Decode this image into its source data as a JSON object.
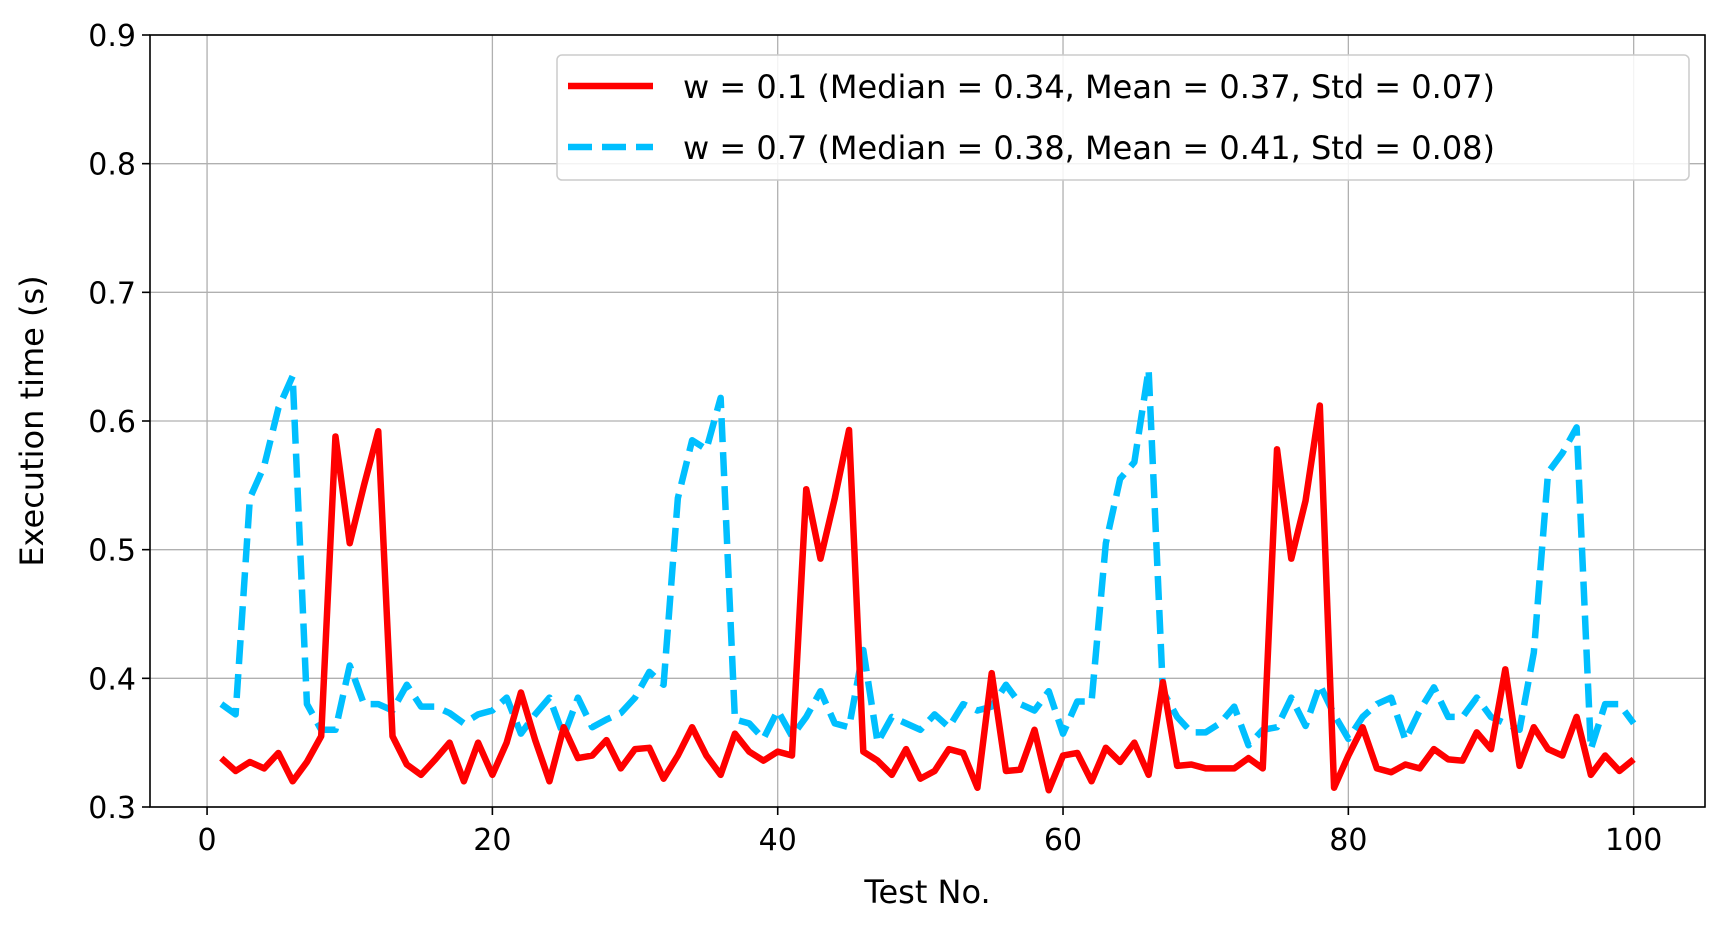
{
  "chart_data": {
    "type": "line",
    "xlabel": "Test No.",
    "ylabel": "Execution time (s)",
    "xlim": [
      -4,
      105
    ],
    "ylim": [
      0.3,
      0.9
    ],
    "xticks": [
      0,
      20,
      40,
      60,
      80,
      100
    ],
    "yticks": [
      0.3,
      0.4,
      0.5,
      0.6,
      0.7,
      0.8,
      0.9
    ],
    "grid": true,
    "legend_position": "top-right",
    "x": [
      1,
      2,
      3,
      4,
      5,
      6,
      7,
      8,
      9,
      10,
      11,
      12,
      13,
      14,
      15,
      16,
      17,
      18,
      19,
      20,
      21,
      22,
      23,
      24,
      25,
      26,
      27,
      28,
      29,
      30,
      31,
      32,
      33,
      34,
      35,
      36,
      37,
      38,
      39,
      40,
      41,
      42,
      43,
      44,
      45,
      46,
      47,
      48,
      49,
      50,
      51,
      52,
      53,
      54,
      55,
      56,
      57,
      58,
      59,
      60,
      61,
      62,
      63,
      64,
      65,
      66,
      67,
      68,
      69,
      70,
      71,
      72,
      73,
      74,
      75,
      76,
      77,
      78,
      79,
      80,
      81,
      82,
      83,
      84,
      85,
      86,
      87,
      88,
      89,
      90,
      91,
      92,
      93,
      94,
      95,
      96,
      97,
      98,
      99,
      100
    ],
    "series": [
      {
        "name": "w = 0.1 (Median = 0.34, Mean = 0.37, Std = 0.07)",
        "color": "#ff0000",
        "style": "solid",
        "values": [
          0.338,
          0.328,
          0.335,
          0.33,
          0.342,
          0.32,
          0.335,
          0.355,
          0.588,
          0.505,
          0.55,
          0.592,
          0.355,
          0.333,
          0.325,
          0.337,
          0.35,
          0.32,
          0.35,
          0.325,
          0.35,
          0.389,
          0.352,
          0.32,
          0.362,
          0.338,
          0.34,
          0.352,
          0.33,
          0.345,
          0.346,
          0.322,
          0.34,
          0.362,
          0.34,
          0.325,
          0.357,
          0.343,
          0.336,
          0.343,
          0.34,
          0.547,
          0.493,
          0.54,
          0.593,
          0.343,
          0.336,
          0.325,
          0.345,
          0.322,
          0.328,
          0.345,
          0.342,
          0.315,
          0.404,
          0.328,
          0.329,
          0.36,
          0.313,
          0.34,
          0.342,
          0.32,
          0.346,
          0.335,
          0.35,
          0.325,
          0.397,
          0.332,
          0.333,
          0.33,
          0.33,
          0.33,
          0.338,
          0.33,
          0.578,
          0.493,
          0.538,
          0.612,
          0.315,
          0.34,
          0.362,
          0.33,
          0.327,
          0.333,
          0.33,
          0.345,
          0.337,
          0.336,
          0.358,
          0.345,
          0.407,
          0.332,
          0.362,
          0.345,
          0.34,
          0.37,
          0.325,
          0.34,
          0.328,
          0.337
        ]
      },
      {
        "name": "w = 0.7 (Median = 0.38, Mean = 0.41, Std = 0.08)",
        "color": "#00bfff",
        "style": "dashed",
        "values": [
          0.38,
          0.372,
          0.54,
          0.565,
          0.61,
          0.635,
          0.38,
          0.36,
          0.36,
          0.41,
          0.38,
          0.38,
          0.375,
          0.395,
          0.378,
          0.378,
          0.373,
          0.365,
          0.372,
          0.375,
          0.385,
          0.357,
          0.372,
          0.385,
          0.355,
          0.385,
          0.362,
          0.368,
          0.373,
          0.385,
          0.405,
          0.395,
          0.54,
          0.585,
          0.578,
          0.618,
          0.368,
          0.365,
          0.353,
          0.375,
          0.355,
          0.37,
          0.39,
          0.365,
          0.362,
          0.422,
          0.35,
          0.37,
          0.365,
          0.36,
          0.372,
          0.362,
          0.38,
          0.375,
          0.378,
          0.395,
          0.38,
          0.375,
          0.39,
          0.357,
          0.382,
          0.382,
          0.505,
          0.555,
          0.568,
          0.64,
          0.39,
          0.37,
          0.358,
          0.358,
          0.365,
          0.378,
          0.348,
          0.36,
          0.362,
          0.385,
          0.363,
          0.395,
          0.372,
          0.353,
          0.37,
          0.38,
          0.385,
          0.352,
          0.375,
          0.393,
          0.37,
          0.37,
          0.385,
          0.37,
          0.365,
          0.36,
          0.42,
          0.56,
          0.575,
          0.595,
          0.345,
          0.38,
          0.38,
          0.365
        ]
      }
    ]
  }
}
